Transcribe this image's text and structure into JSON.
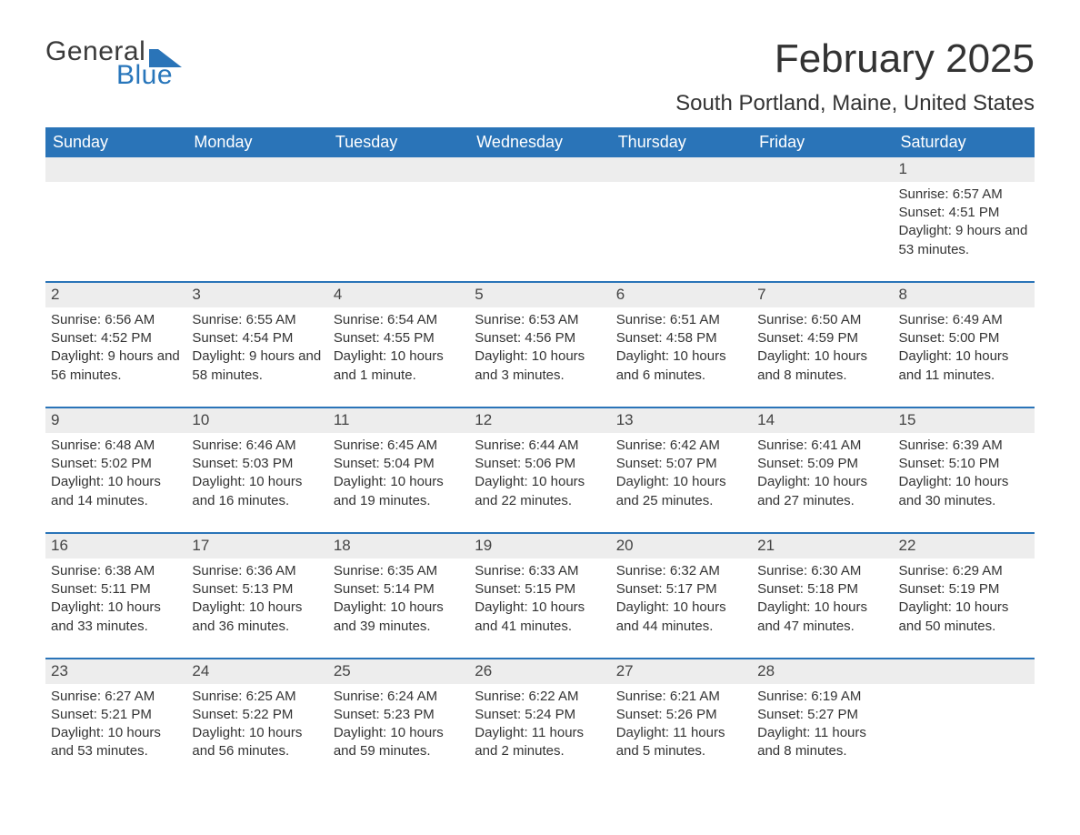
{
  "brand": {
    "name_top": "General",
    "name_bottom": "Blue",
    "flag_color": "#2a74b8"
  },
  "title": "February 2025",
  "location": "South Portland, Maine, United States",
  "colors": {
    "header_bg": "#2a74b8",
    "header_text": "#ffffff",
    "daynum_bg": "#ededed",
    "row_divider": "#2a74b8",
    "body_text": "#333333",
    "page_bg": "#ffffff"
  },
  "typography": {
    "title_fontsize": 44,
    "location_fontsize": 24,
    "weekday_fontsize": 18,
    "cell_fontsize": 15
  },
  "layout": {
    "columns": 7,
    "rows": 5,
    "first_day_column_index": 6
  },
  "weekdays": [
    "Sunday",
    "Monday",
    "Tuesday",
    "Wednesday",
    "Thursday",
    "Friday",
    "Saturday"
  ],
  "days": [
    {
      "n": "1",
      "sunrise": "Sunrise: 6:57 AM",
      "sunset": "Sunset: 4:51 PM",
      "daylight": "Daylight: 9 hours and 53 minutes."
    },
    {
      "n": "2",
      "sunrise": "Sunrise: 6:56 AM",
      "sunset": "Sunset: 4:52 PM",
      "daylight": "Daylight: 9 hours and 56 minutes."
    },
    {
      "n": "3",
      "sunrise": "Sunrise: 6:55 AM",
      "sunset": "Sunset: 4:54 PM",
      "daylight": "Daylight: 9 hours and 58 minutes."
    },
    {
      "n": "4",
      "sunrise": "Sunrise: 6:54 AM",
      "sunset": "Sunset: 4:55 PM",
      "daylight": "Daylight: 10 hours and 1 minute."
    },
    {
      "n": "5",
      "sunrise": "Sunrise: 6:53 AM",
      "sunset": "Sunset: 4:56 PM",
      "daylight": "Daylight: 10 hours and 3 minutes."
    },
    {
      "n": "6",
      "sunrise": "Sunrise: 6:51 AM",
      "sunset": "Sunset: 4:58 PM",
      "daylight": "Daylight: 10 hours and 6 minutes."
    },
    {
      "n": "7",
      "sunrise": "Sunrise: 6:50 AM",
      "sunset": "Sunset: 4:59 PM",
      "daylight": "Daylight: 10 hours and 8 minutes."
    },
    {
      "n": "8",
      "sunrise": "Sunrise: 6:49 AM",
      "sunset": "Sunset: 5:00 PM",
      "daylight": "Daylight: 10 hours and 11 minutes."
    },
    {
      "n": "9",
      "sunrise": "Sunrise: 6:48 AM",
      "sunset": "Sunset: 5:02 PM",
      "daylight": "Daylight: 10 hours and 14 minutes."
    },
    {
      "n": "10",
      "sunrise": "Sunrise: 6:46 AM",
      "sunset": "Sunset: 5:03 PM",
      "daylight": "Daylight: 10 hours and 16 minutes."
    },
    {
      "n": "11",
      "sunrise": "Sunrise: 6:45 AM",
      "sunset": "Sunset: 5:04 PM",
      "daylight": "Daylight: 10 hours and 19 minutes."
    },
    {
      "n": "12",
      "sunrise": "Sunrise: 6:44 AM",
      "sunset": "Sunset: 5:06 PM",
      "daylight": "Daylight: 10 hours and 22 minutes."
    },
    {
      "n": "13",
      "sunrise": "Sunrise: 6:42 AM",
      "sunset": "Sunset: 5:07 PM",
      "daylight": "Daylight: 10 hours and 25 minutes."
    },
    {
      "n": "14",
      "sunrise": "Sunrise: 6:41 AM",
      "sunset": "Sunset: 5:09 PM",
      "daylight": "Daylight: 10 hours and 27 minutes."
    },
    {
      "n": "15",
      "sunrise": "Sunrise: 6:39 AM",
      "sunset": "Sunset: 5:10 PM",
      "daylight": "Daylight: 10 hours and 30 minutes."
    },
    {
      "n": "16",
      "sunrise": "Sunrise: 6:38 AM",
      "sunset": "Sunset: 5:11 PM",
      "daylight": "Daylight: 10 hours and 33 minutes."
    },
    {
      "n": "17",
      "sunrise": "Sunrise: 6:36 AM",
      "sunset": "Sunset: 5:13 PM",
      "daylight": "Daylight: 10 hours and 36 minutes."
    },
    {
      "n": "18",
      "sunrise": "Sunrise: 6:35 AM",
      "sunset": "Sunset: 5:14 PM",
      "daylight": "Daylight: 10 hours and 39 minutes."
    },
    {
      "n": "19",
      "sunrise": "Sunrise: 6:33 AM",
      "sunset": "Sunset: 5:15 PM",
      "daylight": "Daylight: 10 hours and 41 minutes."
    },
    {
      "n": "20",
      "sunrise": "Sunrise: 6:32 AM",
      "sunset": "Sunset: 5:17 PM",
      "daylight": "Daylight: 10 hours and 44 minutes."
    },
    {
      "n": "21",
      "sunrise": "Sunrise: 6:30 AM",
      "sunset": "Sunset: 5:18 PM",
      "daylight": "Daylight: 10 hours and 47 minutes."
    },
    {
      "n": "22",
      "sunrise": "Sunrise: 6:29 AM",
      "sunset": "Sunset: 5:19 PM",
      "daylight": "Daylight: 10 hours and 50 minutes."
    },
    {
      "n": "23",
      "sunrise": "Sunrise: 6:27 AM",
      "sunset": "Sunset: 5:21 PM",
      "daylight": "Daylight: 10 hours and 53 minutes."
    },
    {
      "n": "24",
      "sunrise": "Sunrise: 6:25 AM",
      "sunset": "Sunset: 5:22 PM",
      "daylight": "Daylight: 10 hours and 56 minutes."
    },
    {
      "n": "25",
      "sunrise": "Sunrise: 6:24 AM",
      "sunset": "Sunset: 5:23 PM",
      "daylight": "Daylight: 10 hours and 59 minutes."
    },
    {
      "n": "26",
      "sunrise": "Sunrise: 6:22 AM",
      "sunset": "Sunset: 5:24 PM",
      "daylight": "Daylight: 11 hours and 2 minutes."
    },
    {
      "n": "27",
      "sunrise": "Sunrise: 6:21 AM",
      "sunset": "Sunset: 5:26 PM",
      "daylight": "Daylight: 11 hours and 5 minutes."
    },
    {
      "n": "28",
      "sunrise": "Sunrise: 6:19 AM",
      "sunset": "Sunset: 5:27 PM",
      "daylight": "Daylight: 11 hours and 8 minutes."
    }
  ]
}
